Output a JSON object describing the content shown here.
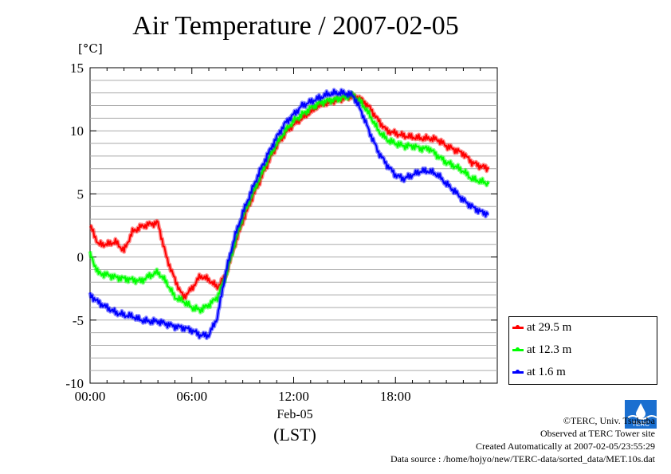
{
  "chart_data": {
    "type": "line",
    "title": "Air Temperature / 2007-02-05",
    "ylabel": "[°C]",
    "xlabel": "(LST)",
    "x_date_label": "Feb-05",
    "xlim": [
      0,
      24
    ],
    "ylim": [
      -10,
      15
    ],
    "x_ticks": [
      {
        "value": 0,
        "label": "00:00"
      },
      {
        "value": 6,
        "label": "06:00"
      },
      {
        "value": 12,
        "label": "12:00"
      },
      {
        "value": 18,
        "label": "18:00"
      }
    ],
    "y_ticks": [
      {
        "value": -10,
        "label": "-10"
      },
      {
        "value": -5,
        "label": "-5"
      },
      {
        "value": 0,
        "label": "0"
      },
      {
        "value": 5,
        "label": "5"
      },
      {
        "value": 10,
        "label": "10"
      },
      {
        "value": 15,
        "label": "15"
      }
    ],
    "grid": true,
    "legend_position": "right-bottom",
    "x": [
      0.0,
      0.5,
      1.0,
      1.5,
      2.0,
      2.5,
      3.0,
      3.5,
      4.0,
      4.5,
      5.0,
      5.5,
      6.0,
      6.5,
      7.0,
      7.5,
      8.0,
      8.5,
      9.0,
      9.5,
      10.0,
      10.5,
      11.0,
      11.5,
      12.0,
      12.5,
      13.0,
      13.5,
      14.0,
      14.5,
      15.0,
      15.5,
      16.0,
      16.5,
      17.0,
      17.5,
      18.0,
      18.5,
      19.0,
      19.5,
      20.0,
      20.5,
      21.0,
      21.5,
      22.0,
      22.5,
      23.0,
      23.5
    ],
    "series": [
      {
        "name": "at 29.5 m",
        "color": "#ff0000",
        "values": [
          2.5,
          1.0,
          1.0,
          1.2,
          0.5,
          2.0,
          2.4,
          2.6,
          2.7,
          0.0,
          -1.8,
          -3.2,
          -2.5,
          -1.5,
          -1.8,
          -2.4,
          -1.5,
          0.8,
          2.8,
          4.5,
          6.0,
          7.5,
          8.8,
          9.8,
          10.5,
          11.0,
          11.5,
          12.0,
          12.2,
          12.4,
          12.6,
          12.8,
          12.5,
          11.8,
          10.8,
          10.0,
          9.8,
          9.6,
          9.5,
          9.4,
          9.4,
          9.3,
          8.8,
          8.5,
          8.2,
          7.5,
          7.2,
          7.0
        ]
      },
      {
        "name": "at 12.3 m",
        "color": "#00ff00",
        "values": [
          0.2,
          -1.3,
          -1.4,
          -1.6,
          -1.7,
          -1.8,
          -1.9,
          -1.5,
          -1.2,
          -2.0,
          -3.2,
          -3.5,
          -4.0,
          -4.2,
          -3.8,
          -3.2,
          -1.5,
          1.0,
          3.2,
          4.8,
          6.3,
          7.8,
          9.0,
          10.0,
          10.8,
          11.3,
          11.8,
          12.2,
          12.4,
          12.5,
          12.7,
          12.8,
          12.2,
          11.2,
          10.0,
          9.3,
          9.0,
          8.8,
          8.8,
          8.6,
          8.6,
          8.0,
          7.5,
          7.2,
          6.8,
          6.2,
          6.0,
          5.8
        ]
      },
      {
        "name": "at 1.6 m",
        "color": "#0000ff",
        "values": [
          -3.0,
          -3.6,
          -4.0,
          -4.4,
          -4.6,
          -4.7,
          -5.0,
          -5.1,
          -5.1,
          -5.3,
          -5.5,
          -5.6,
          -5.8,
          -6.2,
          -6.2,
          -4.8,
          -1.2,
          1.5,
          3.5,
          5.2,
          6.8,
          8.2,
          9.5,
          10.6,
          11.3,
          12.0,
          12.3,
          12.6,
          12.9,
          13.0,
          13.0,
          12.8,
          11.5,
          9.8,
          8.3,
          7.3,
          6.5,
          6.2,
          6.5,
          6.8,
          6.8,
          6.5,
          5.8,
          5.2,
          4.5,
          4.0,
          3.6,
          3.4
        ]
      }
    ]
  },
  "credits": {
    "line1": "©TERC, Univ. Tsukuba",
    "line2": "Observed at TERC Tower site",
    "line3": "Created Automatically at 2007-02-05/23:55:29",
    "line4": "Data source : /home/hojyo/new/TERC-data/sorted_data/MET.10s.dat"
  },
  "logo_text": "TERC"
}
